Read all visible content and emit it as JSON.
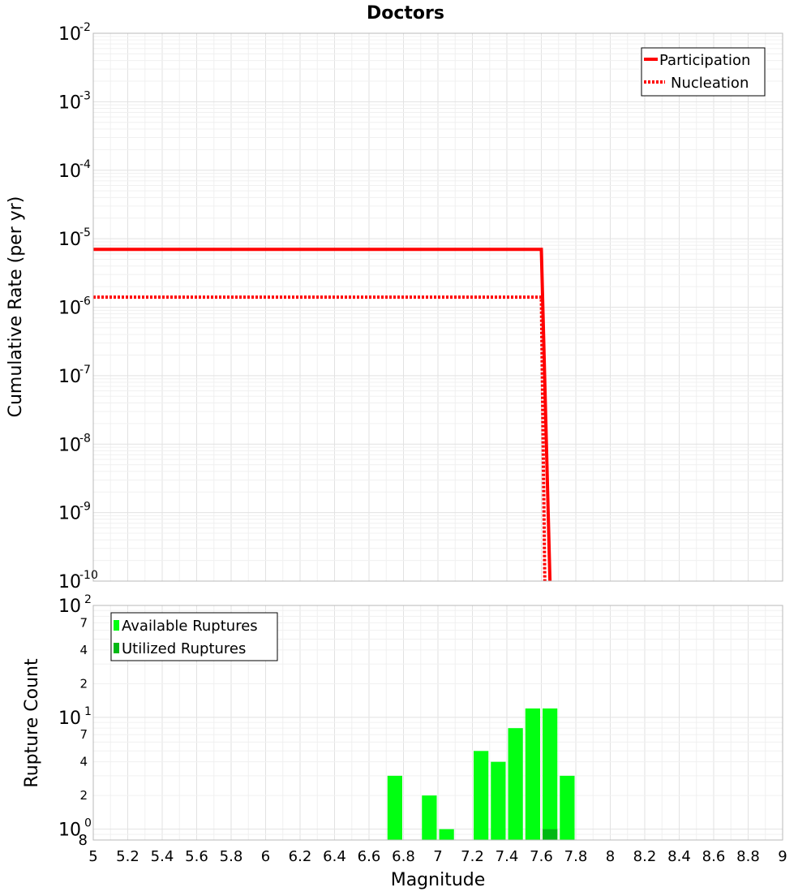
{
  "chart_data": [
    {
      "type": "line",
      "title": "Doctors",
      "xlabel": "",
      "ylabel": "Cumulative Rate (per yr)",
      "xlim": [
        5,
        9
      ],
      "ylim": [
        1e-10,
        0.01
      ],
      "yscale": "log",
      "grid": true,
      "legend_position": "top-right",
      "y_ticks": [
        {
          "base": "10",
          "exp": "-10",
          "value": 1e-10
        },
        {
          "base": "10",
          "exp": "-9",
          "value": 1e-09
        },
        {
          "base": "10",
          "exp": "-8",
          "value": 1e-08
        },
        {
          "base": "10",
          "exp": "-7",
          "value": 1e-07
        },
        {
          "base": "10",
          "exp": "-6",
          "value": 1e-06
        },
        {
          "base": "10",
          "exp": "-5",
          "value": 1e-05
        },
        {
          "base": "10",
          "exp": "-4",
          "value": 0.0001
        },
        {
          "base": "10",
          "exp": "-3",
          "value": 0.001
        },
        {
          "base": "10",
          "exp": "-2",
          "value": 0.01
        }
      ],
      "series": [
        {
          "name": "Participation",
          "style": "solid",
          "color": "#ff0000",
          "points": [
            [
              5.0,
              7e-06
            ],
            [
              7.6,
              7e-06
            ],
            [
              7.65,
              1e-10
            ]
          ]
        },
        {
          "name": "Nucleation",
          "style": "dotted",
          "color": "#ff0000",
          "points": [
            [
              5.0,
              1.4e-06
            ],
            [
              7.6,
              1.4e-06
            ],
            [
              7.62,
              1e-10
            ]
          ]
        }
      ]
    },
    {
      "type": "bar",
      "title": "",
      "xlabel": "Magnitude",
      "ylabel": "Rupture Count",
      "xlim": [
        5,
        9
      ],
      "ylim": [
        0.8,
        100
      ],
      "yscale": "log",
      "grid": true,
      "legend_position": "top-left",
      "x_ticks": [
        "5",
        "5.2",
        "5.4",
        "5.6",
        "5.8",
        "6",
        "6.2",
        "6.4",
        "6.6",
        "6.8",
        "7",
        "7.2",
        "7.4",
        "7.6",
        "7.8",
        "8",
        "8.2",
        "8.4",
        "8.6",
        "8.8",
        "9"
      ],
      "y_major_ticks": [
        {
          "base": "10",
          "exp": "0",
          "value": 1
        },
        {
          "base": "10",
          "exp": "1",
          "value": 10
        },
        {
          "base": "10",
          "exp": "2",
          "value": 100
        }
      ],
      "y_minor_ticks": [
        {
          "label": "8",
          "value": 0.8
        },
        {
          "label": "2",
          "value": 2
        },
        {
          "label": "4",
          "value": 4
        },
        {
          "label": "7",
          "value": 7
        },
        {
          "label": "2",
          "value": 20
        },
        {
          "label": "4",
          "value": 40
        },
        {
          "label": "7",
          "value": 70
        }
      ],
      "bin_width": 0.1,
      "series": [
        {
          "name": "Available Ruptures",
          "color": "#00ff11",
          "x": [
            6.75,
            6.95,
            7.05,
            7.25,
            7.35,
            7.45,
            7.55,
            7.65,
            7.75
          ],
          "values": [
            3,
            2,
            1,
            5,
            4,
            8,
            12,
            12,
            3
          ]
        },
        {
          "name": "Utilized Ruptures",
          "color": "#00b814",
          "x": [
            7.65
          ],
          "values": [
            1
          ]
        }
      ]
    }
  ]
}
